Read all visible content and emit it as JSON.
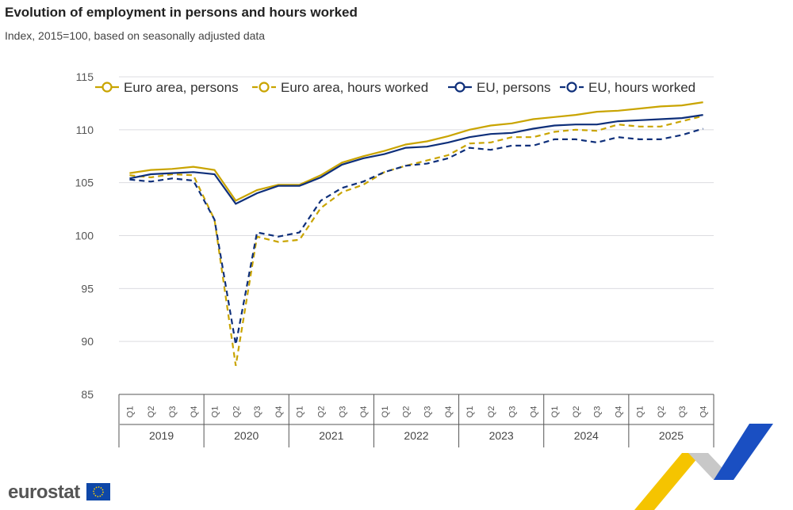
{
  "title": "Evolution of employment in persons and hours worked",
  "subtitle": "Index, 2015=100, based on seasonally adjusted data",
  "logo_text": "eurostat",
  "chart_data": {
    "type": "line",
    "title": "Evolution of employment in persons and hours worked",
    "subtitle": "Index, 2015=100, based on seasonally adjusted data",
    "ylim": [
      85,
      115
    ],
    "yticks": [
      85,
      90,
      95,
      100,
      105,
      110,
      115
    ],
    "grid": true,
    "legend": "top",
    "quarters": [
      "Q1",
      "Q2",
      "Q3",
      "Q4"
    ],
    "years": [
      "2019",
      "2020",
      "2021",
      "2022",
      "2023",
      "2024",
      "2025"
    ],
    "series": [
      {
        "name": "Euro area, persons",
        "color": "#c9a400",
        "dash": false,
        "values": [
          105.9,
          106.2,
          106.3,
          106.5,
          106.2,
          103.3,
          104.3,
          104.8,
          104.8,
          105.7,
          106.9,
          107.5,
          108.0,
          108.6,
          108.9,
          109.4,
          110.0,
          110.4,
          110.6,
          111.0,
          111.2,
          111.4,
          111.7,
          111.8,
          112.0,
          112.2,
          112.3,
          112.6
        ]
      },
      {
        "name": "Euro area, hours worked",
        "color": "#c9a400",
        "dash": true,
        "values": [
          105.7,
          105.5,
          105.8,
          105.7,
          101.5,
          87.7,
          99.9,
          99.4,
          99.6,
          102.6,
          104.1,
          104.8,
          106.0,
          106.6,
          107.1,
          107.6,
          108.7,
          108.8,
          109.3,
          109.3,
          109.8,
          110.0,
          109.9,
          110.5,
          110.3,
          110.3,
          110.8,
          111.3
        ]
      },
      {
        "name": "EU, persons",
        "color": "#0e2f7a",
        "dash": false,
        "values": [
          105.4,
          105.8,
          105.9,
          106.0,
          105.8,
          103.0,
          104.0,
          104.7,
          104.7,
          105.5,
          106.7,
          107.3,
          107.7,
          108.3,
          108.4,
          108.8,
          109.3,
          109.6,
          109.7,
          110.1,
          110.4,
          110.5,
          110.5,
          110.8,
          110.9,
          111.0,
          111.1,
          111.4
        ]
      },
      {
        "name": "EU, hours worked",
        "color": "#0e2f7a",
        "dash": true,
        "values": [
          105.3,
          105.1,
          105.4,
          105.2,
          101.5,
          89.7,
          100.3,
          99.9,
          100.3,
          103.3,
          104.5,
          105.1,
          106.0,
          106.6,
          106.8,
          107.3,
          108.3,
          108.1,
          108.5,
          108.5,
          109.1,
          109.1,
          108.8,
          109.3,
          109.1,
          109.1,
          109.5,
          110.1
        ]
      }
    ]
  }
}
